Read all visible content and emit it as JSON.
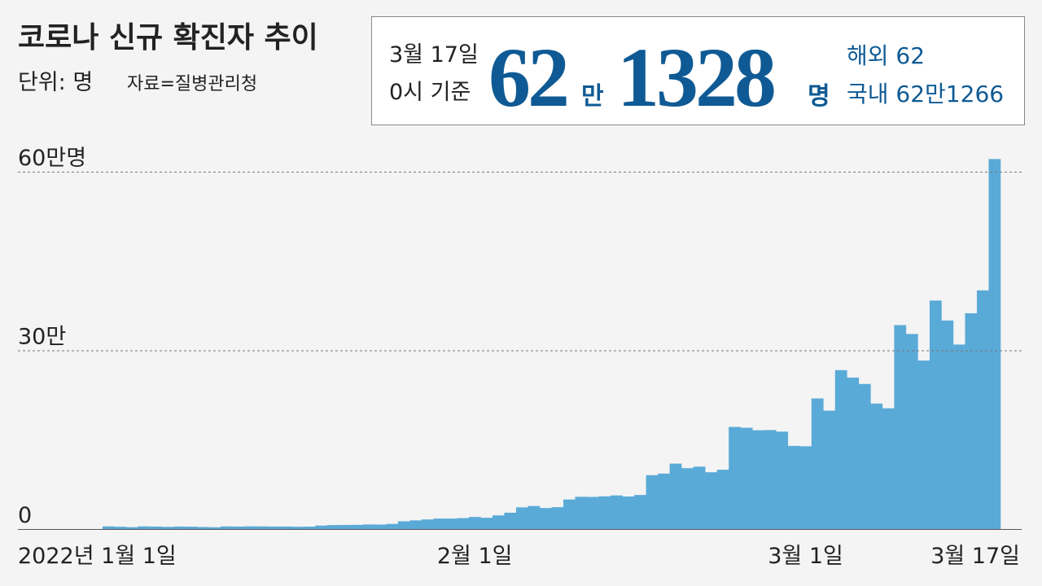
{
  "chart_data": {
    "type": "bar",
    "title": "코로나 신규 확진자 추이",
    "unit": "단위: 명",
    "source": "자료=질병관리청",
    "headline": {
      "date": "3월 17일",
      "basis": "0시 기준",
      "big1": "62",
      "unit1": "만",
      "big2": "1328",
      "unit2": "명",
      "overseas": "해외 62",
      "domestic": "국내 62만1266"
    },
    "categories": [
      "2022년 1월 1일",
      null,
      null,
      null,
      null,
      null,
      null,
      null,
      null,
      null,
      null,
      null,
      null,
      null,
      null,
      null,
      null,
      null,
      null,
      null,
      null,
      null,
      null,
      null,
      null,
      null,
      null,
      null,
      null,
      null,
      null,
      "2월 1일",
      null,
      null,
      null,
      null,
      null,
      null,
      null,
      null,
      null,
      null,
      null,
      null,
      null,
      null,
      null,
      null,
      null,
      null,
      null,
      null,
      null,
      null,
      null,
      null,
      null,
      null,
      null,
      "3월 1일",
      null,
      null,
      null,
      null,
      null,
      null,
      null,
      null,
      null,
      null,
      null,
      null,
      null,
      null,
      null,
      "3월 17일"
    ],
    "values": [
      4416,
      3833,
      3129,
      4443,
      4125,
      3717,
      4167,
      3974,
      3376,
      3005,
      4388,
      4167,
      4542,
      4420,
      4193,
      4194,
      3857,
      4070,
      5805,
      6603,
      6769,
      7009,
      7630,
      7513,
      8571,
      13012,
      14518,
      16096,
      17542,
      17528,
      18342,
      20270,
      18896,
      22907,
      27443,
      36362,
      38691,
      35286,
      36719,
      49567,
      54122,
      53926,
      54941,
      56431,
      54619,
      57177,
      90443,
      93135,
      109831,
      102211,
      104829,
      95362,
      99573,
      171452,
      170016,
      165890,
      166209,
      163566,
      139626,
      138993,
      219241,
      198803,
      266853,
      254327,
      243628,
      210716,
      202721,
      342446,
      327549,
      282987,
      383665,
      350190,
      309790,
      362338,
      400741,
      621328
    ],
    "color": "#5aaad8",
    "ylim": [
      0,
      640000
    ],
    "yticks": [
      0,
      {
        "value": 300000,
        "label": "30만"
      },
      {
        "value": 600000,
        "label": "60만명"
      }
    ],
    "grid": true
  }
}
